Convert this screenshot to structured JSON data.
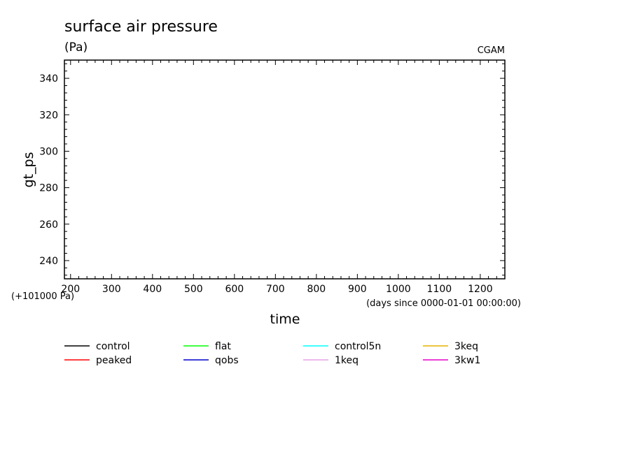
{
  "chart_data": {
    "type": "line",
    "title": "surface air pressure",
    "units": "(Pa)",
    "source": "CGAM",
    "xlabel": "time",
    "x_units": "(days since 0000-01-01 00:00:00)",
    "ylabel": "gt_ps",
    "y_offset_label": "(+101000 Pa)",
    "xlim": [
      185,
      1260
    ],
    "ylim": [
      230,
      350
    ],
    "x_ticks": [
      200,
      300,
      400,
      500,
      600,
      700,
      800,
      900,
      1000,
      1100,
      1200
    ],
    "y_ticks": [
      240,
      260,
      280,
      300,
      320,
      340
    ],
    "grid": false,
    "series": [
      {
        "name": "control",
        "color": "#000000",
        "x": [],
        "y": []
      },
      {
        "name": "peaked",
        "color": "#ff0000",
        "x": [],
        "y": []
      },
      {
        "name": "flat",
        "color": "#00ff00",
        "x": [],
        "y": []
      },
      {
        "name": "qobs",
        "color": "#0000cc",
        "x": [],
        "y": []
      },
      {
        "name": "control5n",
        "color": "#00ffff",
        "x": [],
        "y": []
      },
      {
        "name": "1keq",
        "color": "#e6a0e6",
        "x": [],
        "y": []
      },
      {
        "name": "3keq",
        "color": "#e6b400",
        "x": [],
        "y": []
      },
      {
        "name": "3kw1",
        "color": "#e600c8",
        "x": [],
        "y": []
      }
    ]
  }
}
